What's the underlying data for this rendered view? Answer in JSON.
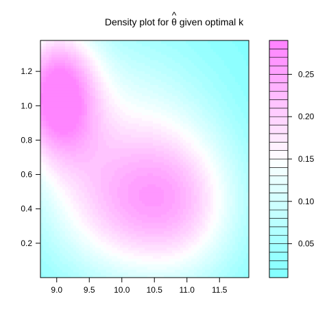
{
  "chart_data": {
    "type": "heatmap",
    "title": {
      "prefix": "Density plot for ",
      "symbol": "θ",
      "accent": "^",
      "suffix": " given optimal k"
    },
    "xlabel": "",
    "ylabel": "",
    "xlim": [
      8.75,
      11.95
    ],
    "ylim": [
      0.0,
      1.38
    ],
    "x_ticks": [
      9.0,
      9.5,
      10.0,
      10.5,
      11.0,
      11.5
    ],
    "x_tick_labels": [
      "9.0",
      "9.5",
      "10.0",
      "10.5",
      "11.0",
      "11.5"
    ],
    "y_ticks": [
      0.2,
      0.4,
      0.6,
      0.8,
      1.0,
      1.2
    ],
    "y_tick_labels": [
      "0.2",
      "0.4",
      "0.6",
      "0.8",
      "1.0",
      "1.2"
    ],
    "density_peak": {
      "x": 9.0,
      "y": 1.07,
      "value": 0.28
    },
    "colorbar": {
      "min": 0.01,
      "max": 0.29,
      "levels": 28,
      "low_color": "#80ffff",
      "mid_color": "#ffffff",
      "high_color": "#ff80ff",
      "ticks": [
        0.05,
        0.1,
        0.15,
        0.2,
        0.25
      ],
      "tick_labels": [
        "0.05",
        "0.10",
        "0.15",
        "0.20",
        "0.25"
      ]
    }
  }
}
